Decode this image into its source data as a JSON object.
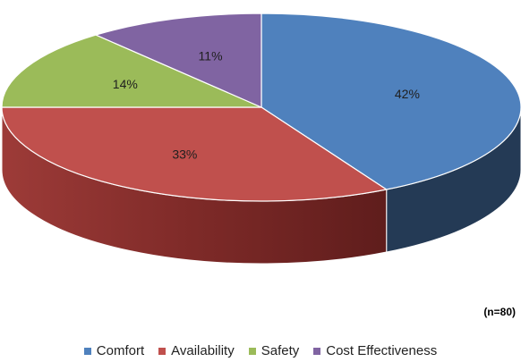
{
  "chart_data": {
    "type": "pie",
    "style": "3d",
    "categories": [
      "Comfort",
      "Availability",
      "Safety",
      "Cost Effectiveness"
    ],
    "values": [
      42,
      33,
      14,
      11
    ],
    "labels": [
      "42%",
      "33%",
      "14%",
      "11%"
    ],
    "colors": [
      "#4F81BD",
      "#C0504D",
      "#9BBB59",
      "#8064A2"
    ],
    "note": "(n=80)",
    "legend_position": "bottom"
  }
}
